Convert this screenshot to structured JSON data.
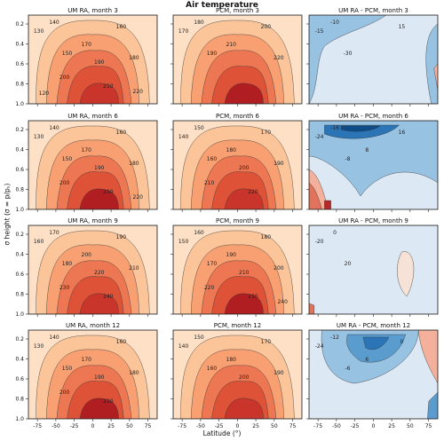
{
  "figure": {
    "title": "Air temperature",
    "ylabel": "σ height (σ = p/pₛ)",
    "xlabel": "Latitude (°)"
  },
  "colors": {
    "abs_scale": [
      "#fdf4ea",
      "#fde0c5",
      "#fbc599",
      "#f8a072",
      "#ee7753",
      "#de5338",
      "#c9352a",
      "#b01e22"
    ],
    "diff_scale": [
      "#0b4c89",
      "#2b74b6",
      "#5b9ccf",
      "#97c2e2",
      "#c6dcee",
      "#dce8f4",
      "#f7e2d7",
      "#f4b09a",
      "#e0735a",
      "#b62a2b"
    ]
  },
  "chart_data": [
    {
      "type": "heatmap",
      "title": "UM RA, month 3",
      "x_ticks": [
        "-75",
        "-50",
        "-25",
        "0",
        "25",
        "50",
        "75"
      ],
      "y_ticks": [
        "0.2",
        "0.4",
        "0.6",
        "0.8",
        "1.0"
      ],
      "contour_labels": [
        "130",
        "140",
        "150",
        "160",
        "170",
        "180",
        "190",
        "200",
        "210",
        "220",
        "120"
      ]
    },
    {
      "type": "heatmap",
      "title": "PCM, month 3",
      "x_ticks": [
        "-75",
        "-50",
        "-25",
        "0",
        "25",
        "50",
        "75"
      ],
      "y_ticks": [
        "0.2",
        "0.4",
        "0.6",
        "0.8",
        "1.0"
      ],
      "contour_labels": [
        "170",
        "180",
        "190",
        "200",
        "210",
        "220"
      ]
    },
    {
      "type": "heatmap",
      "title": "UM RA - PCM, month 3",
      "x_ticks": [
        "-75",
        "-50",
        "-25",
        "0",
        "25",
        "50",
        "75"
      ],
      "y_ticks": [
        "0.2",
        "0.4",
        "0.6",
        "0.8",
        "1.0"
      ],
      "contour_labels": [
        "-15",
        "-10",
        "-30",
        "15"
      ]
    },
    {
      "type": "heatmap",
      "title": "UM RA, month 6",
      "x_ticks": [
        "-75",
        "-50",
        "-25",
        "0",
        "25",
        "50",
        "75"
      ],
      "y_ticks": [
        "0.2",
        "0.4",
        "0.6",
        "0.8",
        "1.0"
      ],
      "contour_labels": [
        "130",
        "140",
        "150",
        "160",
        "170",
        "180",
        "190",
        "200",
        "210",
        "220"
      ]
    },
    {
      "type": "heatmap",
      "title": "PCM, month 6",
      "x_ticks": [
        "-75",
        "-50",
        "-25",
        "0",
        "25",
        "50",
        "75"
      ],
      "y_ticks": [
        "0.2",
        "0.4",
        "0.6",
        "0.8",
        "1.0"
      ],
      "contour_labels": [
        "140",
        "150",
        "160",
        "170",
        "180",
        "190",
        "200",
        "210",
        "220"
      ]
    },
    {
      "type": "heatmap",
      "title": "UM RA - PCM, month 6",
      "x_ticks": [
        "-75",
        "-50",
        "-25",
        "0",
        "25",
        "50",
        "75"
      ],
      "y_ticks": [
        "0.2",
        "0.4",
        "0.6",
        "0.8",
        "1.0"
      ],
      "contour_labels": [
        "-24",
        "-16",
        "-8",
        "16",
        "8"
      ]
    },
    {
      "type": "heatmap",
      "title": "UM RA, month 9",
      "x_ticks": [
        "-75",
        "-50",
        "-25",
        "0",
        "25",
        "50",
        "75"
      ],
      "y_ticks": [
        "0.2",
        "0.4",
        "0.6",
        "0.8",
        "1.0"
      ],
      "contour_labels": [
        "160",
        "170",
        "180",
        "190",
        "200",
        "210",
        "220",
        "230",
        "240"
      ]
    },
    {
      "type": "heatmap",
      "title": "PCM, month 9",
      "x_ticks": [
        "-75",
        "-50",
        "-25",
        "0",
        "25",
        "50",
        "75"
      ],
      "y_ticks": [
        "0.2",
        "0.4",
        "0.6",
        "0.8",
        "1.0"
      ],
      "contour_labels": [
        "150",
        "160",
        "170",
        "180",
        "190",
        "200",
        "210",
        "220",
        "230",
        "240"
      ]
    },
    {
      "type": "heatmap",
      "title": "UM RA - PCM, month 9",
      "x_ticks": [
        "-75",
        "-50",
        "-25",
        "0",
        "25",
        "50",
        "75"
      ],
      "y_ticks": [
        "0.2",
        "0.4",
        "0.6",
        "0.8",
        "1.0"
      ],
      "contour_labels": [
        "-20",
        "0",
        "20"
      ]
    },
    {
      "type": "heatmap",
      "title": "UM RA, month 12",
      "x_ticks": [
        "-75",
        "-50",
        "-25",
        "0",
        "25",
        "50",
        "75"
      ],
      "y_ticks": [
        "0.2",
        "0.4",
        "0.6",
        "0.8",
        "1.0"
      ],
      "contour_labels": [
        "130",
        "140",
        "150",
        "160",
        "170",
        "180",
        "190",
        "200",
        "210"
      ]
    },
    {
      "type": "heatmap",
      "title": "PCM, month 12",
      "x_ticks": [
        "-75",
        "-50",
        "-25",
        "0",
        "25",
        "50",
        "75"
      ],
      "y_ticks": [
        "0.2",
        "0.4",
        "0.6",
        "0.8",
        "1.0"
      ],
      "contour_labels": [
        "140",
        "150",
        "160",
        "170",
        "180",
        "190",
        "200"
      ]
    },
    {
      "type": "heatmap",
      "title": "UM RA - PCM, month 12",
      "x_ticks": [
        "-75",
        "-50",
        "-25",
        "0",
        "25",
        "50",
        "75"
      ],
      "y_ticks": [
        "0.2",
        "0.4",
        "0.6",
        "0.8",
        "1.0"
      ],
      "contour_labels": [
        "-24",
        "-12",
        "-6",
        "0",
        "6"
      ]
    }
  ]
}
